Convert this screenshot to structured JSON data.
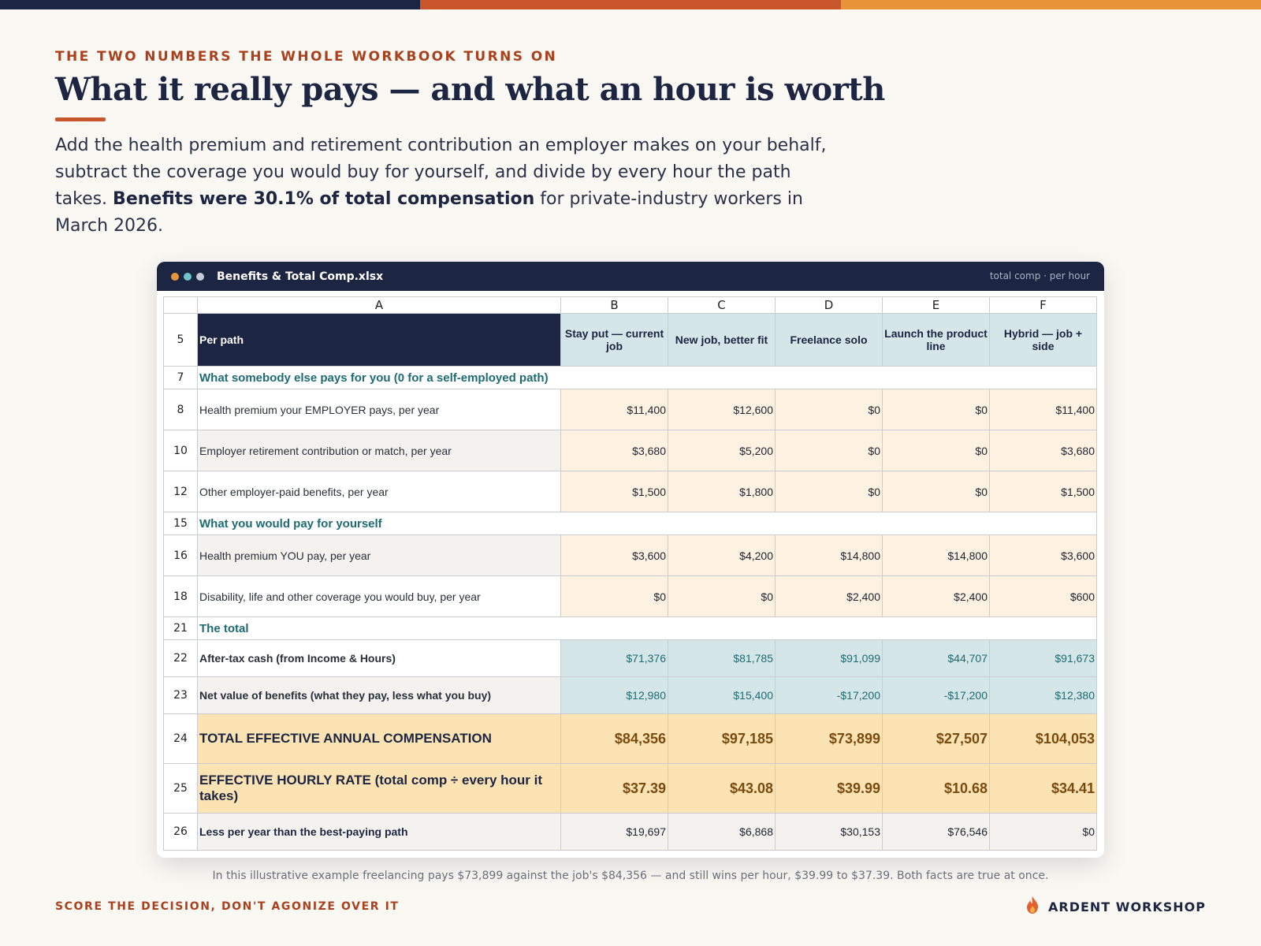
{
  "colors": {
    "navy": "#1c2541",
    "rust": "#c9552b",
    "orange": "#e8953a",
    "teal": "#1e6b73"
  },
  "header": {
    "eyebrow": "THE TWO NUMBERS THE WHOLE WORKBOOK TURNS ON",
    "title": "What it really pays — and what an hour is worth",
    "intro_before": "Add the health premium and retirement contribution an employer makes on your behalf, subtract the coverage you would buy for yourself, and divide by every hour the path takes. ",
    "intro_bold": "Benefits were 30.1% of total compensation",
    "intro_after": " for private-industry workers in March 2026."
  },
  "window": {
    "title": "Benefits & Total Comp.xlsx",
    "meta": "total comp · per hour",
    "dot_colors": [
      "#e8953a",
      "#6fc3c9",
      "#c5cad6"
    ]
  },
  "sheet": {
    "columns": [
      "A",
      "B",
      "C",
      "D",
      "E",
      "F"
    ],
    "header": {
      "row": "5",
      "label": "Per path",
      "paths": [
        "Stay put — current job",
        "New job, better fit",
        "Freelance solo",
        "Launch the product line",
        "Hybrid — job + side"
      ]
    },
    "sections": {
      "others_pay": {
        "row": "7",
        "label": "What somebody else pays for you  (0 for a self-employed path)"
      },
      "you_pay": {
        "row": "15",
        "label": "What you would pay for yourself"
      },
      "total": {
        "row": "21",
        "label": "The total"
      }
    },
    "rows": {
      "r8": {
        "row": "8",
        "label": "Health premium your EMPLOYER pays, per year",
        "values": [
          "$11,400",
          "$12,600",
          "$0",
          "$0",
          "$11,400"
        ]
      },
      "r10": {
        "row": "10",
        "label": "Employer retirement contribution or match, per year",
        "values": [
          "$3,680",
          "$5,200",
          "$0",
          "$0",
          "$3,680"
        ]
      },
      "r12": {
        "row": "12",
        "label": "Other employer-paid benefits, per year",
        "values": [
          "$1,500",
          "$1,800",
          "$0",
          "$0",
          "$1,500"
        ]
      },
      "r16": {
        "row": "16",
        "label": "Health premium YOU pay, per year",
        "values": [
          "$3,600",
          "$4,200",
          "$14,800",
          "$14,800",
          "$3,600"
        ]
      },
      "r18": {
        "row": "18",
        "label": "Disability, life and other coverage you would buy, per year",
        "values": [
          "$0",
          "$0",
          "$2,400",
          "$2,400",
          "$600"
        ]
      },
      "r22": {
        "row": "22",
        "label": "After-tax cash  (from Income & Hours)",
        "values": [
          "$71,376",
          "$81,785",
          "$91,099",
          "$44,707",
          "$91,673"
        ]
      },
      "r23": {
        "row": "23",
        "label": "Net value of benefits  (what they pay, less what you buy)",
        "values": [
          "$12,980",
          "$15,400",
          "-$17,200",
          "-$17,200",
          "$12,380"
        ]
      },
      "r24": {
        "row": "24",
        "label": "TOTAL EFFECTIVE ANNUAL COMPENSATION",
        "values": [
          "$84,356",
          "$97,185",
          "$73,899",
          "$27,507",
          "$104,053"
        ]
      },
      "r25": {
        "row": "25",
        "label": "EFFECTIVE HOURLY RATE  (total comp ÷ every hour it takes)",
        "values": [
          "$37.39",
          "$43.08",
          "$39.99",
          "$10.68",
          "$34.41"
        ]
      },
      "r26": {
        "row": "26",
        "label": "Less per year than the best-paying path",
        "values": [
          "$19,697",
          "$6,868",
          "$30,153",
          "$76,546",
          "$0"
        ]
      }
    }
  },
  "caption": "In this illustrative example freelancing pays $73,899 against the job's $84,356 — and still wins per hour, $39.99 to $37.39. Both facts are true at once.",
  "footer": {
    "left": "SCORE THE DECISION, DON'T AGONIZE OVER IT",
    "brand": "ARDENT WORKSHOP",
    "brand_icon": "flame-icon"
  }
}
